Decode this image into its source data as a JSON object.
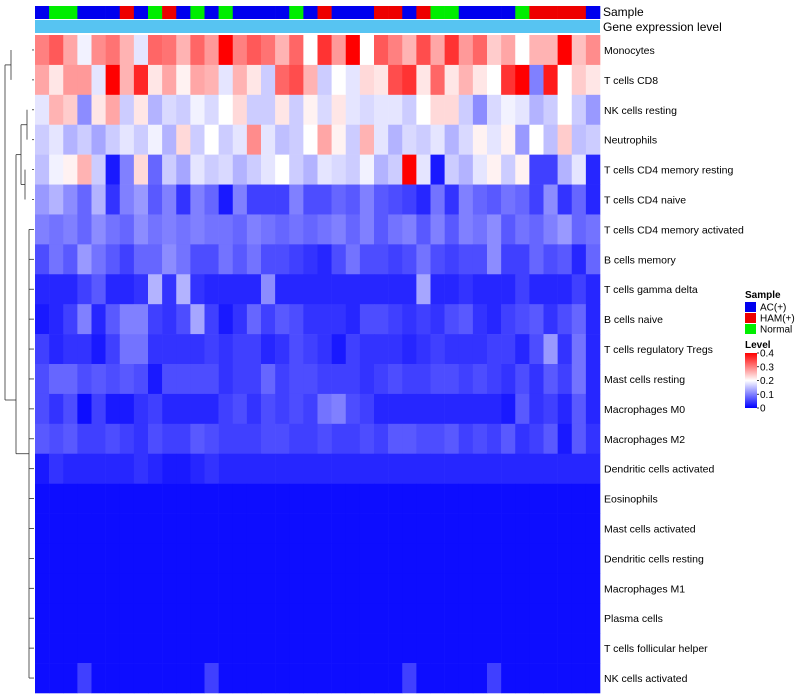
{
  "chart_data": {
    "type": "heatmap",
    "title": "",
    "annotation_labels": {
      "sample": "Sample",
      "gene_level": "Gene expression level"
    },
    "sample_groups": [
      "AC(+)",
      "Normal",
      "Normal",
      "AC(+)",
      "AC(+)",
      "AC(+)",
      "HAM(+)",
      "AC(+)",
      "Normal",
      "HAM(+)",
      "AC(+)",
      "Normal",
      "AC(+)",
      "Normal",
      "AC(+)",
      "AC(+)",
      "AC(+)",
      "AC(+)",
      "Normal",
      "AC(+)",
      "HAM(+)",
      "AC(+)",
      "AC(+)",
      "AC(+)",
      "HAM(+)",
      "HAM(+)",
      "AC(+)",
      "HAM(+)",
      "Normal",
      "Normal",
      "AC(+)",
      "AC(+)",
      "AC(+)",
      "AC(+)",
      "Normal",
      "HAM(+)",
      "HAM(+)",
      "HAM(+)",
      "HAM(+)",
      "AC(+)"
    ],
    "rows": [
      {
        "label": "Monocytes",
        "values": [
          0.3,
          0.33,
          0.27,
          0.19,
          0.29,
          0.31,
          0.26,
          0.18,
          0.32,
          0.31,
          0.26,
          0.32,
          0.28,
          0.4,
          0.3,
          0.33,
          0.31,
          0.26,
          0.32,
          0.2,
          0.36,
          0.28,
          0.4,
          0.2,
          0.33,
          0.3,
          0.26,
          0.34,
          0.27,
          0.36,
          0.28,
          0.32,
          0.24,
          0.27,
          0.2,
          0.26,
          0.26,
          0.4,
          0.25,
          0.29
        ]
      },
      {
        "label": "T cells CD8",
        "values": [
          0.27,
          0.22,
          0.28,
          0.28,
          0.18,
          0.4,
          0.26,
          0.37,
          0.22,
          0.27,
          0.21,
          0.27,
          0.26,
          0.18,
          0.26,
          0.22,
          0.16,
          0.32,
          0.34,
          0.26,
          0.16,
          0.2,
          0.18,
          0.23,
          0.22,
          0.34,
          0.36,
          0.22,
          0.32,
          0.22,
          0.26,
          0.22,
          0.2,
          0.36,
          0.4,
          0.1,
          0.38,
          0.2,
          0.24,
          0.22
        ]
      },
      {
        "label": "NK cells resting",
        "values": [
          0.18,
          0.26,
          0.24,
          0.11,
          0.22,
          0.27,
          0.16,
          0.22,
          0.14,
          0.17,
          0.16,
          0.19,
          0.17,
          0.2,
          0.23,
          0.16,
          0.16,
          0.22,
          0.16,
          0.21,
          0.17,
          0.22,
          0.18,
          0.17,
          0.18,
          0.18,
          0.16,
          0.2,
          0.23,
          0.23,
          0.16,
          0.11,
          0.17,
          0.19,
          0.18,
          0.14,
          0.16,
          0.2,
          0.16,
          0.12
        ]
      },
      {
        "label": "Neutrophils",
        "values": [
          0.16,
          0.18,
          0.14,
          0.16,
          0.13,
          0.16,
          0.18,
          0.16,
          0.19,
          0.14,
          0.23,
          0.16,
          0.2,
          0.16,
          0.18,
          0.29,
          0.18,
          0.15,
          0.16,
          0.2,
          0.27,
          0.21,
          0.16,
          0.26,
          0.18,
          0.14,
          0.17,
          0.16,
          0.18,
          0.14,
          0.17,
          0.21,
          0.18,
          0.21,
          0.12,
          0.2,
          0.15,
          0.24,
          0.15,
          0.16
        ]
      },
      {
        "label": "T cells CD4 memory resting",
        "values": [
          0.15,
          0.19,
          0.21,
          0.26,
          0.16,
          0.02,
          0.1,
          0.23,
          0.08,
          0.16,
          0.13,
          0.18,
          0.16,
          0.17,
          0.14,
          0.16,
          0.18,
          0.2,
          0.16,
          0.14,
          0.18,
          0.17,
          0.16,
          0.19,
          0.14,
          0.16,
          0.4,
          0.18,
          0.02,
          0.16,
          0.14,
          0.18,
          0.21,
          0.16,
          0.21,
          0.05,
          0.05,
          0.14,
          0.18,
          0.03
        ]
      },
      {
        "label": "T cells CD4 naive",
        "values": [
          0.12,
          0.14,
          0.11,
          0.08,
          0.14,
          0.04,
          0.1,
          0.12,
          0.07,
          0.1,
          0.04,
          0.1,
          0.08,
          0.02,
          0.1,
          0.05,
          0.05,
          0.05,
          0.1,
          0.06,
          0.06,
          0.08,
          0.07,
          0.1,
          0.07,
          0.06,
          0.05,
          0.03,
          0.09,
          0.04,
          0.1,
          0.08,
          0.07,
          0.09,
          0.08,
          0.05,
          0.11,
          0.04,
          0.08,
          0.03
        ]
      },
      {
        "label": "T cells CD4 memory activated",
        "values": [
          0.1,
          0.09,
          0.1,
          0.08,
          0.11,
          0.09,
          0.08,
          0.11,
          0.09,
          0.1,
          0.09,
          0.1,
          0.09,
          0.09,
          0.08,
          0.1,
          0.09,
          0.08,
          0.09,
          0.08,
          0.09,
          0.1,
          0.08,
          0.1,
          0.07,
          0.09,
          0.1,
          0.07,
          0.1,
          0.07,
          0.1,
          0.09,
          0.11,
          0.07,
          0.09,
          0.08,
          0.1,
          0.12,
          0.08,
          0.09
        ]
      },
      {
        "label": "B cells memory",
        "values": [
          0.06,
          0.09,
          0.07,
          0.12,
          0.09,
          0.07,
          0.05,
          0.08,
          0.08,
          0.11,
          0.09,
          0.06,
          0.06,
          0.09,
          0.07,
          0.09,
          0.06,
          0.06,
          0.05,
          0.04,
          0.03,
          0.06,
          0.09,
          0.06,
          0.06,
          0.05,
          0.06,
          0.09,
          0.06,
          0.05,
          0.06,
          0.06,
          0.11,
          0.05,
          0.05,
          0.08,
          0.06,
          0.07,
          0.03,
          0.08
        ]
      },
      {
        "label": "T cells gamma delta",
        "values": [
          0.03,
          0.03,
          0.03,
          0.05,
          0.07,
          0.03,
          0.03,
          0.04,
          0.14,
          0.04,
          0.14,
          0.04,
          0.03,
          0.03,
          0.03,
          0.03,
          0.11,
          0.03,
          0.03,
          0.03,
          0.03,
          0.03,
          0.03,
          0.03,
          0.03,
          0.03,
          0.03,
          0.13,
          0.03,
          0.03,
          0.04,
          0.03,
          0.03,
          0.03,
          0.05,
          0.03,
          0.03,
          0.03,
          0.05,
          0.03
        ]
      },
      {
        "label": "B cells naive",
        "values": [
          0.02,
          0.03,
          0.05,
          0.1,
          0.03,
          0.07,
          0.1,
          0.1,
          0.05,
          0.04,
          0.06,
          0.13,
          0.05,
          0.02,
          0.04,
          0.08,
          0.05,
          0.07,
          0.06,
          0.04,
          0.04,
          0.04,
          0.03,
          0.06,
          0.06,
          0.05,
          0.04,
          0.05,
          0.04,
          0.06,
          0.07,
          0.04,
          0.03,
          0.05,
          0.06,
          0.07,
          0.04,
          0.06,
          0.08,
          0.03
        ]
      },
      {
        "label": "T cells regulatory  Tregs",
        "values": [
          0.05,
          0.03,
          0.04,
          0.04,
          0.02,
          0.05,
          0.09,
          0.09,
          0.04,
          0.04,
          0.04,
          0.04,
          0.05,
          0.04,
          0.05,
          0.05,
          0.03,
          0.04,
          0.06,
          0.05,
          0.04,
          0.02,
          0.05,
          0.04,
          0.04,
          0.04,
          0.03,
          0.04,
          0.05,
          0.04,
          0.04,
          0.04,
          0.05,
          0.05,
          0.03,
          0.06,
          0.12,
          0.04,
          0.09,
          0.03
        ]
      },
      {
        "label": "Mast cells resting",
        "values": [
          0.06,
          0.08,
          0.08,
          0.06,
          0.07,
          0.06,
          0.07,
          0.06,
          0.02,
          0.06,
          0.06,
          0.06,
          0.06,
          0.04,
          0.05,
          0.05,
          0.08,
          0.05,
          0.06,
          0.06,
          0.05,
          0.05,
          0.05,
          0.04,
          0.05,
          0.06,
          0.05,
          0.05,
          0.06,
          0.06,
          0.05,
          0.06,
          0.05,
          0.04,
          0.06,
          0.04,
          0.07,
          0.05,
          0.09,
          0.03
        ]
      },
      {
        "label": "Macrophages M0",
        "values": [
          0.06,
          0.04,
          0.06,
          0.01,
          0.05,
          0.02,
          0.02,
          0.04,
          0.05,
          0.03,
          0.03,
          0.03,
          0.03,
          0.05,
          0.06,
          0.04,
          0.06,
          0.05,
          0.06,
          0.05,
          0.09,
          0.1,
          0.06,
          0.05,
          0.03,
          0.03,
          0.03,
          0.03,
          0.03,
          0.03,
          0.03,
          0.03,
          0.03,
          0.02,
          0.07,
          0.04,
          0.05,
          0.03,
          0.07,
          0.03
        ]
      },
      {
        "label": "Macrophages M2",
        "values": [
          0.07,
          0.06,
          0.07,
          0.05,
          0.05,
          0.06,
          0.05,
          0.04,
          0.06,
          0.05,
          0.05,
          0.07,
          0.06,
          0.05,
          0.05,
          0.05,
          0.06,
          0.06,
          0.05,
          0.05,
          0.06,
          0.05,
          0.05,
          0.06,
          0.05,
          0.07,
          0.07,
          0.06,
          0.06,
          0.07,
          0.05,
          0.06,
          0.05,
          0.07,
          0.04,
          0.05,
          0.07,
          0.02,
          0.07,
          0.04
        ]
      },
      {
        "label": "Dendritic cells activated",
        "values": [
          0.02,
          0.04,
          0.03,
          0.03,
          0.03,
          0.03,
          0.03,
          0.04,
          0.03,
          0.02,
          0.02,
          0.03,
          0.04,
          0.03,
          0.03,
          0.03,
          0.03,
          0.03,
          0.03,
          0.03,
          0.03,
          0.03,
          0.03,
          0.03,
          0.03,
          0.03,
          0.03,
          0.03,
          0.03,
          0.03,
          0.03,
          0.03,
          0.03,
          0.03,
          0.03,
          0.03,
          0.03,
          0.03,
          0.03,
          0.03
        ]
      },
      {
        "label": "Eosinophils",
        "values": [
          0.01,
          0.01,
          0.01,
          0.01,
          0.01,
          0.01,
          0.01,
          0.01,
          0.01,
          0.01,
          0.01,
          0.01,
          0.01,
          0.01,
          0.01,
          0.01,
          0.01,
          0.01,
          0.01,
          0.01,
          0.01,
          0.01,
          0.01,
          0.01,
          0.01,
          0.01,
          0.01,
          0.01,
          0.01,
          0.01,
          0.01,
          0.01,
          0.01,
          0.01,
          0.01,
          0.01,
          0.01,
          0.01,
          0.01,
          0.01
        ]
      },
      {
        "label": "Mast cells activated",
        "values": [
          0.01,
          0.01,
          0.01,
          0.01,
          0.01,
          0.01,
          0.01,
          0.01,
          0.01,
          0.01,
          0.01,
          0.01,
          0.01,
          0.01,
          0.01,
          0.01,
          0.01,
          0.01,
          0.01,
          0.01,
          0.01,
          0.01,
          0.01,
          0.01,
          0.01,
          0.01,
          0.01,
          0.01,
          0.01,
          0.01,
          0.01,
          0.01,
          0.01,
          0.01,
          0.01,
          0.01,
          0.01,
          0.01,
          0.01,
          0.01
        ]
      },
      {
        "label": "Dendritic cells resting",
        "values": [
          0.01,
          0.01,
          0.01,
          0.01,
          0.01,
          0.01,
          0.01,
          0.01,
          0.01,
          0.01,
          0.01,
          0.01,
          0.01,
          0.01,
          0.01,
          0.01,
          0.01,
          0.01,
          0.01,
          0.01,
          0.01,
          0.01,
          0.01,
          0.01,
          0.01,
          0.01,
          0.01,
          0.01,
          0.01,
          0.01,
          0.01,
          0.01,
          0.01,
          0.01,
          0.01,
          0.01,
          0.01,
          0.01,
          0.01,
          0.01
        ]
      },
      {
        "label": "Macrophages M1",
        "values": [
          0.01,
          0.01,
          0.01,
          0.01,
          0.01,
          0.01,
          0.01,
          0.01,
          0.01,
          0.01,
          0.01,
          0.01,
          0.01,
          0.01,
          0.01,
          0.01,
          0.01,
          0.01,
          0.01,
          0.01,
          0.01,
          0.01,
          0.01,
          0.01,
          0.01,
          0.01,
          0.01,
          0.01,
          0.01,
          0.01,
          0.01,
          0.01,
          0.01,
          0.01,
          0.01,
          0.01,
          0.01,
          0.01,
          0.01,
          0.01
        ]
      },
      {
        "label": "Plasma cells",
        "values": [
          0.01,
          0.01,
          0.01,
          0.01,
          0.01,
          0.01,
          0.01,
          0.01,
          0.01,
          0.01,
          0.01,
          0.01,
          0.01,
          0.01,
          0.01,
          0.01,
          0.01,
          0.01,
          0.01,
          0.01,
          0.01,
          0.01,
          0.01,
          0.01,
          0.01,
          0.01,
          0.01,
          0.01,
          0.01,
          0.01,
          0.01,
          0.01,
          0.01,
          0.01,
          0.01,
          0.01,
          0.01,
          0.01,
          0.01,
          0.01
        ]
      },
      {
        "label": "T cells follicular helper",
        "values": [
          0.01,
          0.01,
          0.01,
          0.01,
          0.01,
          0.01,
          0.01,
          0.01,
          0.01,
          0.01,
          0.01,
          0.01,
          0.01,
          0.01,
          0.01,
          0.01,
          0.01,
          0.01,
          0.01,
          0.01,
          0.01,
          0.01,
          0.01,
          0.01,
          0.01,
          0.01,
          0.01,
          0.01,
          0.01,
          0.01,
          0.01,
          0.01,
          0.01,
          0.01,
          0.01,
          0.01,
          0.01,
          0.01,
          0.01,
          0.01
        ]
      },
      {
        "label": "NK cells activated",
        "values": [
          0.01,
          0.01,
          0.01,
          0.05,
          0.01,
          0.01,
          0.01,
          0.01,
          0.01,
          0.01,
          0.01,
          0.01,
          0.05,
          0.01,
          0.01,
          0.01,
          0.01,
          0.01,
          0.01,
          0.01,
          0.01,
          0.01,
          0.01,
          0.01,
          0.01,
          0.01,
          0.05,
          0.01,
          0.01,
          0.01,
          0.01,
          0.01,
          0.05,
          0.01,
          0.01,
          0.01,
          0.01,
          0.01,
          0.01,
          0.01
        ]
      }
    ],
    "color_scale": {
      "min": 0,
      "max": 0.4,
      "low": "#0000ff",
      "mid": "#ffffff",
      "high": "#ff0000"
    },
    "legend_sample": {
      "title": "Sample",
      "items": [
        {
          "label": "AC(+)",
          "color": "#0000ee"
        },
        {
          "label": "HAM(+)",
          "color": "#ee0000"
        },
        {
          "label": "Normal",
          "color": "#00ee00"
        }
      ]
    },
    "legend_level": {
      "title": "Level",
      "ticks": [
        "0.4",
        "0.3",
        "0.2",
        "0.1",
        "0"
      ],
      "tick_values": [
        0.4,
        0.3,
        0.2,
        0.1,
        0
      ]
    },
    "gene_level_color": "#57c4f2",
    "dendrogram": "rows hierarchically clustered"
  }
}
